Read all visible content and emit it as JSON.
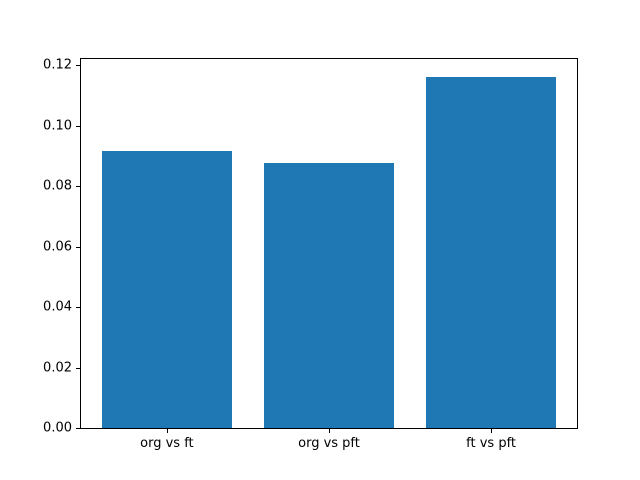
{
  "chart_data": {
    "type": "bar",
    "categories": [
      "org vs ft",
      "org vs pft",
      "ft vs pft"
    ],
    "values": [
      0.0917,
      0.0875,
      0.1162
    ],
    "title": "",
    "xlabel": "",
    "ylabel": "",
    "ylim": [
      0,
      0.122
    ],
    "xlim": [
      -0.53,
      2.53
    ],
    "yticks": [
      0.0,
      0.02,
      0.04,
      0.06,
      0.08,
      0.1,
      0.12
    ],
    "ytick_labels": [
      "0.00",
      "0.02",
      "0.04",
      "0.06",
      "0.08",
      "0.10",
      "0.12"
    ],
    "bar_width_units": 0.8,
    "bar_color": "#1f77b4",
    "spine_color": "#000000",
    "background_color": "#ffffff",
    "grid": false,
    "legend_position": "none"
  }
}
